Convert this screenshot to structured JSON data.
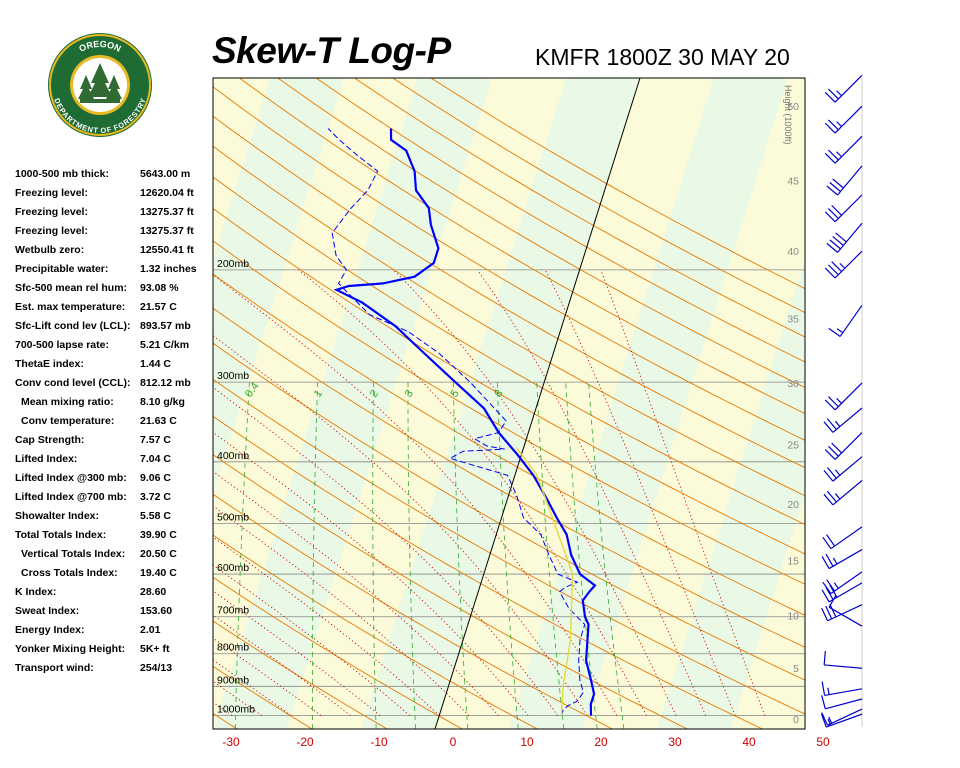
{
  "header": {
    "title": "Skew-T Log-P",
    "subtitle": "KMFR 1800Z 30 MAY 20"
  },
  "logo": {
    "text_top": "OREGON",
    "text_bottom": "DEPARTMENT OF FORESTRY",
    "colors": {
      "ring": "#1f6b34",
      "gold": "#e8b923",
      "inner": "#ffffff",
      "tree": "#2f6b32"
    }
  },
  "indices": [
    {
      "label": "1000-500 mb thick:",
      "value": "5643.00 m",
      "indent": false
    },
    {
      "label": "Freezing level:",
      "value": "12620.04 ft",
      "indent": false
    },
    {
      "label": "Freezing level:",
      "value": "13275.37 ft",
      "indent": false
    },
    {
      "label": "Freezing level:",
      "value": "13275.37 ft",
      "indent": false
    },
    {
      "label": "Wetbulb zero:",
      "value": "12550.41 ft",
      "indent": false
    },
    {
      "label": "Precipitable water:",
      "value": "1.32 inches",
      "indent": false
    },
    {
      "label": "Sfc-500 mean rel hum:",
      "value": "93.08 %",
      "indent": false
    },
    {
      "label": "Est. max temperature:",
      "value": "21.57 C",
      "indent": false
    },
    {
      "label": "Sfc-Lift cond lev (LCL):",
      "value": "893.57 mb",
      "indent": false
    },
    {
      "label": "700-500 lapse rate:",
      "value": "5.21 C/km",
      "indent": false
    },
    {
      "label": "ThetaE index:",
      "value": "1.44 C",
      "indent": false
    },
    {
      "label": "Conv cond level (CCL):",
      "value": "812.12 mb",
      "indent": false
    },
    {
      "label": "Mean mixing ratio:",
      "value": "8.10 g/kg",
      "indent": true
    },
    {
      "label": "Conv temperature:",
      "value": "21.63 C",
      "indent": true
    },
    {
      "label": "Cap Strength:",
      "value": "7.57 C",
      "indent": false
    },
    {
      "label": "Lifted Index:",
      "value": "7.04 C",
      "indent": false
    },
    {
      "label": "Lifted Index @300 mb:",
      "value": "9.06 C",
      "indent": false
    },
    {
      "label": "Lifted Index @700 mb:",
      "value": "3.72 C",
      "indent": false
    },
    {
      "label": "Showalter Index:",
      "value": "5.58 C",
      "indent": false
    },
    {
      "label": "Total Totals Index:",
      "value": "39.90 C",
      "indent": false
    },
    {
      "label": "Vertical Totals Index:",
      "value": "20.50 C",
      "indent": true
    },
    {
      "label": "Cross Totals Index:",
      "value": "19.40 C",
      "indent": true
    },
    {
      "label": "K Index:",
      "value": "28.60",
      "indent": false
    },
    {
      "label": "Sweat Index:",
      "value": "153.60",
      "indent": false
    },
    {
      "label": "Energy Index:",
      "value": "2.01",
      "indent": false
    },
    {
      "label": "Yonker Mixing Height:",
      "value": "5K+ ft",
      "indent": false
    },
    {
      "label": "Transport wind:",
      "value": "254/13",
      "indent": false
    }
  ],
  "chart_data": {
    "type": "line",
    "xlabel": "",
    "ylabel": "",
    "x_ticks": [
      "-30",
      "-20",
      "-10",
      "0",
      "10",
      "20",
      "30",
      "40",
      "50"
    ],
    "xlim": [
      -30,
      50
    ],
    "pressure_labels": [
      "200mb",
      "300mb",
      "400mb",
      "500mb",
      "600mb",
      "700mb",
      "800mb",
      "900mb",
      "1000mb"
    ],
    "pressure_levels": [
      200,
      300,
      400,
      500,
      600,
      700,
      800,
      900,
      1000
    ],
    "height_axis_label": "Height (1000ft)",
    "height_ticks": [
      "0",
      "5",
      "10",
      "15",
      "20",
      "25",
      "30",
      "35",
      "40",
      "45",
      "50"
    ],
    "mixing_ratio_labels": [
      "0.4",
      "1",
      "2",
      "3",
      "5",
      "8"
    ],
    "log_pressure": true,
    "skewed": true,
    "colors": {
      "temperature": "#0000ff",
      "dewpoint": "#0000ff",
      "parcel": "#e8d840",
      "dry_adiabat": "#e87800",
      "moist_adiabat": "#cc0000",
      "mixing_ratio": "#33aa33",
      "freezing_line": "#000000",
      "band_green": "#eaf9e6",
      "band_yellow": "#fbfbd9",
      "isobar": "#888888",
      "axis_tick": "#cc0000"
    },
    "series": [
      {
        "name": "",
        "role": "temperature",
        "points": [
          [
            1000,
            20.5
          ],
          [
            960,
            20.0
          ],
          [
            925,
            20.0
          ],
          [
            880,
            19.0
          ],
          [
            820,
            17.5
          ],
          [
            760,
            16.8
          ],
          [
            720,
            16.3
          ],
          [
            700,
            15.5
          ],
          [
            660,
            14.5
          ],
          [
            640,
            15.0
          ],
          [
            625,
            15.5
          ],
          [
            600,
            13.0
          ],
          [
            560,
            11.0
          ],
          [
            520,
            9.5
          ],
          [
            490,
            7.5
          ],
          [
            460,
            5.5
          ],
          [
            420,
            2.5
          ],
          [
            390,
            -0.5
          ],
          [
            360,
            -4.0
          ],
          [
            330,
            -7.0
          ],
          [
            300,
            -12.0
          ],
          [
            270,
            -17.5
          ],
          [
            245,
            -22.5
          ],
          [
            225,
            -28.0
          ],
          [
            215,
            -32.0
          ],
          [
            212,
            -30.5
          ],
          [
            210,
            -26.0
          ],
          [
            205,
            -22.0
          ],
          [
            195,
            -20.0
          ],
          [
            185,
            -20.0
          ],
          [
            170,
            -22.0
          ],
          [
            160,
            -23.0
          ],
          [
            150,
            -25.5
          ],
          [
            140,
            -26.5
          ],
          [
            130,
            -28.5
          ],
          [
            125,
            -31.0
          ],
          [
            120,
            -31.5
          ]
        ]
      },
      {
        "name": "",
        "role": "dewpoint",
        "points": [
          [
            1000,
            16.5
          ],
          [
            980,
            16.5
          ],
          [
            965,
            17.0
          ],
          [
            950,
            18.0
          ],
          [
            920,
            18.5
          ],
          [
            880,
            17.5
          ],
          [
            820,
            16.5
          ],
          [
            760,
            15.8
          ],
          [
            720,
            15.8
          ],
          [
            680,
            13.0
          ],
          [
            640,
            11.0
          ],
          [
            630,
            11.5
          ],
          [
            618,
            13.0
          ],
          [
            600,
            10.0
          ],
          [
            560,
            8.0
          ],
          [
            520,
            6.0
          ],
          [
            490,
            3.0
          ],
          [
            450,
            1.0
          ],
          [
            420,
            -1.0
          ],
          [
            395,
            -9.5
          ],
          [
            385,
            -8.0
          ],
          [
            382,
            -2.5
          ],
          [
            378,
            -5.0
          ],
          [
            373,
            -6.0
          ],
          [
            368,
            -7.0
          ],
          [
            360,
            -4.0
          ],
          [
            345,
            -3.5
          ],
          [
            300,
            -10.0
          ],
          [
            270,
            -15.5
          ],
          [
            250,
            -20.5
          ],
          [
            235,
            -26.5
          ],
          [
            210,
            -32.0
          ],
          [
            200,
            -31.5
          ],
          [
            190,
            -33.5
          ],
          [
            175,
            -35.0
          ],
          [
            160,
            -33.5
          ],
          [
            150,
            -32.0
          ],
          [
            140,
            -31.5
          ],
          [
            132,
            -35.0
          ],
          [
            125,
            -38.0
          ],
          [
            120,
            -40.0
          ]
        ]
      },
      {
        "name": "",
        "role": "parcel",
        "points": [
          [
            1000,
            16.5
          ],
          [
            900,
            15.5
          ],
          [
            760,
            14.5
          ],
          [
            600,
            12.0
          ],
          [
            420,
            3.0
          ],
          [
            380,
            -1.0
          ]
        ]
      }
    ],
    "wind_barbs": [
      {
        "height_kft": 0.5,
        "dir": 250,
        "speed": 15
      },
      {
        "height_kft": 1.0,
        "dir": 245,
        "speed": 15
      },
      {
        "height_kft": 2.0,
        "dir": 255,
        "speed": 10
      },
      {
        "height_kft": 3.0,
        "dir": 260,
        "speed": 15
      },
      {
        "height_kft": 5.0,
        "dir": 275,
        "speed": 10
      },
      {
        "height_kft": 9.0,
        "dir": 300,
        "speed": 10
      },
      {
        "height_kft": 11.0,
        "dir": 245,
        "speed": 30
      },
      {
        "height_kft": 13.0,
        "dir": 240,
        "speed": 30
      },
      {
        "height_kft": 14.0,
        "dir": 235,
        "speed": 25
      },
      {
        "height_kft": 16.0,
        "dir": 240,
        "speed": 25
      },
      {
        "height_kft": 18.0,
        "dir": 235,
        "speed": 20
      },
      {
        "height_kft": 22.0,
        "dir": 230,
        "speed": 25
      },
      {
        "height_kft": 24.0,
        "dir": 230,
        "speed": 25
      },
      {
        "height_kft": 26.0,
        "dir": 225,
        "speed": 30
      },
      {
        "height_kft": 28.0,
        "dir": 230,
        "speed": 25
      },
      {
        "height_kft": 30.0,
        "dir": 225,
        "speed": 25
      },
      {
        "height_kft": 36.0,
        "dir": 215,
        "speed": 15
      },
      {
        "height_kft": 40.0,
        "dir": 225,
        "speed": 35
      },
      {
        "height_kft": 42.0,
        "dir": 220,
        "speed": 40
      },
      {
        "height_kft": 44.0,
        "dir": 225,
        "speed": 30
      },
      {
        "height_kft": 46.0,
        "dir": 220,
        "speed": 30
      },
      {
        "height_kft": 48.0,
        "dir": 225,
        "speed": 25
      },
      {
        "height_kft": 50.0,
        "dir": 225,
        "speed": 25
      },
      {
        "height_kft": 52.0,
        "dir": 225,
        "speed": 25
      }
    ]
  }
}
